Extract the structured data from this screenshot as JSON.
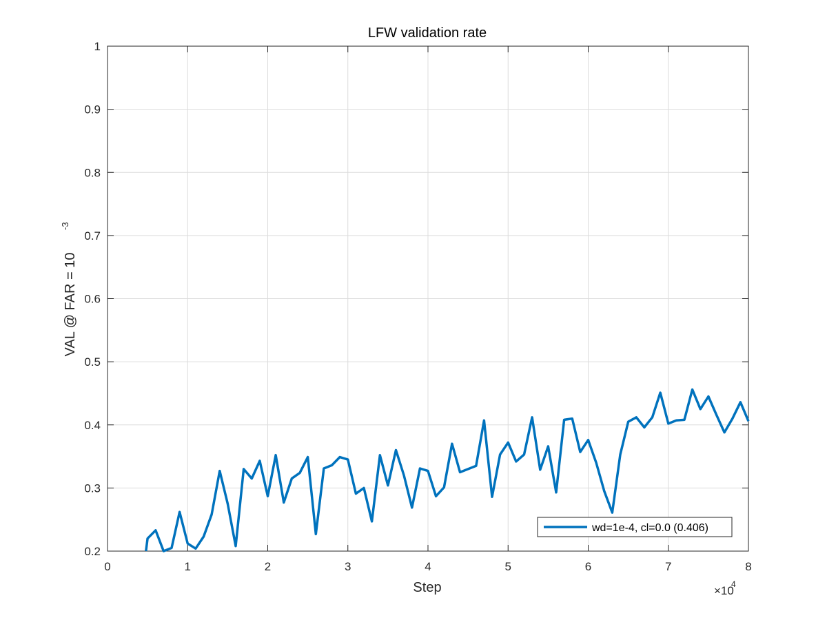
{
  "colors": {
    "series": "#0072BD",
    "grid": "#DCDCDC",
    "axis": "#262626",
    "background": "#FFFFFF"
  },
  "chart_data": {
    "type": "line",
    "title": "LFW validation rate",
    "xlabel": "Step",
    "ylabel": "VAL @ FAR = 10",
    "ylabel_exponent": "-3",
    "x_multiplier": {
      "base": "×10",
      "exponent": "4"
    },
    "xlim": [
      0,
      8
    ],
    "ylim": [
      0.2,
      1
    ],
    "x_ticks": [
      0,
      1,
      2,
      3,
      4,
      5,
      6,
      7,
      8
    ],
    "y_ticks": [
      0.2,
      0.3,
      0.4,
      0.5,
      0.6,
      0.7,
      0.8,
      0.9,
      1
    ],
    "x_tick_labels": [
      "0",
      "1",
      "2",
      "3",
      "4",
      "5",
      "6",
      "7",
      "8"
    ],
    "y_tick_labels": [
      "0.2",
      "0.3",
      "0.4",
      "0.5",
      "0.6",
      "0.7",
      "0.8",
      "0.9",
      "1"
    ],
    "grid": true,
    "legend_position": "bottom-right",
    "series": [
      {
        "name": "wd=1e-4, cl=0.0 (0.406)",
        "color": "#0072BD",
        "x": [
          0.48,
          0.5,
          0.6,
          0.7,
          0.8,
          0.9,
          1.0,
          1.1,
          1.2,
          1.3,
          1.4,
          1.5,
          1.6,
          1.7,
          1.8,
          1.9,
          2.0,
          2.1,
          2.2,
          2.3,
          2.4,
          2.5,
          2.6,
          2.7,
          2.8,
          2.9,
          3.0,
          3.1,
          3.2,
          3.3,
          3.4,
          3.5,
          3.6,
          3.7,
          3.8,
          3.9,
          4.0,
          4.1,
          4.2,
          4.3,
          4.4,
          4.5,
          4.6,
          4.7,
          4.8,
          4.9,
          5.0,
          5.1,
          5.2,
          5.3,
          5.4,
          5.5,
          5.6,
          5.7,
          5.8,
          5.9,
          6.0,
          6.1,
          6.2,
          6.3,
          6.4,
          6.5,
          6.6,
          6.7,
          6.8,
          6.9,
          7.0,
          7.1,
          7.2,
          7.3,
          7.4,
          7.5,
          7.6,
          7.7,
          7.8,
          7.9,
          8.0
        ],
        "y": [
          0.2,
          0.22,
          0.233,
          0.2,
          0.205,
          0.262,
          0.212,
          0.204,
          0.223,
          0.258,
          0.327,
          0.275,
          0.208,
          0.33,
          0.315,
          0.343,
          0.287,
          0.352,
          0.277,
          0.315,
          0.324,
          0.349,
          0.227,
          0.331,
          0.336,
          0.349,
          0.345,
          0.291,
          0.3,
          0.247,
          0.352,
          0.304,
          0.36,
          0.32,
          0.269,
          0.331,
          0.327,
          0.287,
          0.301,
          0.37,
          0.325,
          0.33,
          0.335,
          0.407,
          0.286,
          0.353,
          0.372,
          0.342,
          0.353,
          0.412,
          0.329,
          0.366,
          0.293,
          0.408,
          0.41,
          0.357,
          0.376,
          0.34,
          0.295,
          0.261,
          0.353,
          0.405,
          0.412,
          0.396,
          0.412,
          0.451,
          0.402,
          0.407,
          0.408,
          0.456,
          0.425,
          0.445,
          0.416,
          0.388,
          0.41,
          0.436,
          0.406
        ]
      }
    ]
  }
}
